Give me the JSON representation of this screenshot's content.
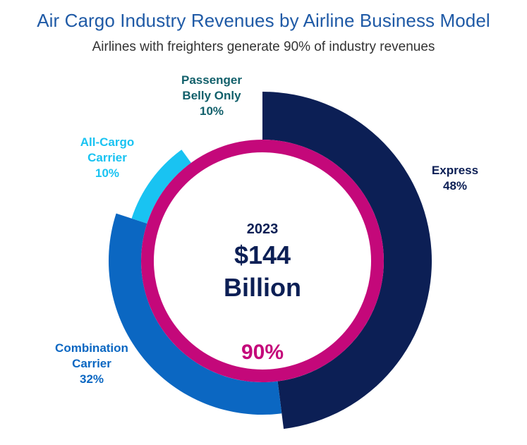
{
  "header": {
    "title": "Air Cargo Industry Revenues by Airline Business Model",
    "subtitle": "Airlines with freighters generate 90% of industry revenues"
  },
  "chart_data": {
    "type": "pie",
    "variant": "donut",
    "segments": [
      {
        "name": "Express",
        "value": 48,
        "label_lines": [
          "Express",
          "48%"
        ],
        "color": "#0c1f55",
        "label_color": "#0c1f55"
      },
      {
        "name": "Combination Carrier",
        "value": 32,
        "label_lines": [
          "Combination",
          "Carrier",
          "32%"
        ],
        "color": "#0b67c2",
        "label_color": "#0b67c2"
      },
      {
        "name": "All-Cargo Carrier",
        "value": 10,
        "label_lines": [
          "All-Cargo",
          "Carrier",
          "10%"
        ],
        "color": "#19c3f2",
        "label_color": "#19c3f2"
      },
      {
        "name": "Passenger Belly Only",
        "value": 10,
        "label_lines": [
          "Passenger",
          "Belly Only",
          "10%"
        ],
        "color": "#12606b",
        "label_color": "#12606b"
      }
    ],
    "inner_ring": {
      "value": 90,
      "label": "90%",
      "color": "#c4087a"
    },
    "center": {
      "year": "2023",
      "amount": "$144",
      "unit": "Billion"
    }
  }
}
